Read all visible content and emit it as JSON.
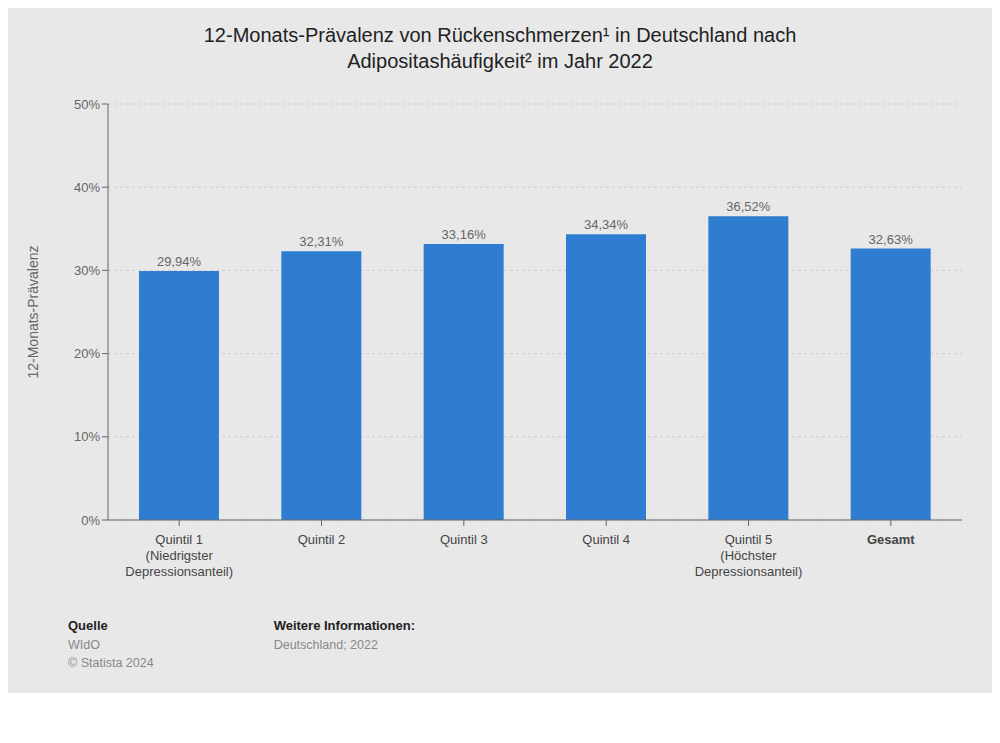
{
  "chart_data": {
    "type": "bar",
    "title": "12-Monats-Prävalenz von Rückenschmerzen¹ in Deutschland nach\nAdipositashäufigkeit² im Jahr 2022",
    "categories": [
      "Quintil 1\n(Niedrigster\nDepressionsanteil)",
      "Quintil 2",
      "Quintil 3",
      "Quintil 4",
      "Quintil 5\n(Höchster\nDepressionsanteil)",
      "Gesamt"
    ],
    "values": [
      29.94,
      32.31,
      33.16,
      34.34,
      36.52,
      32.63
    ],
    "value_labels": [
      "29,94%",
      "32,31%",
      "33,16%",
      "34,34%",
      "36,52%",
      "32,63%"
    ],
    "data_labels": true,
    "color": "#2e7dd1",
    "ylabel": "12-Monats-Prävalenz",
    "ylim": [
      0,
      50
    ],
    "yticks": [
      {
        "value": 0,
        "label": "0%"
      },
      {
        "value": 10,
        "label": "10%"
      },
      {
        "value": 20,
        "label": "20%"
      },
      {
        "value": 30,
        "label": "30%"
      },
      {
        "value": 40,
        "label": "40%"
      },
      {
        "value": 50,
        "label": "50%"
      }
    ],
    "grid": true,
    "annotations": [
      [
        "Quelle",
        "WIdO",
        "© Statista 2024"
      ],
      [
        "Weitere Informationen:",
        "Deutschland; 2022"
      ]
    ]
  }
}
